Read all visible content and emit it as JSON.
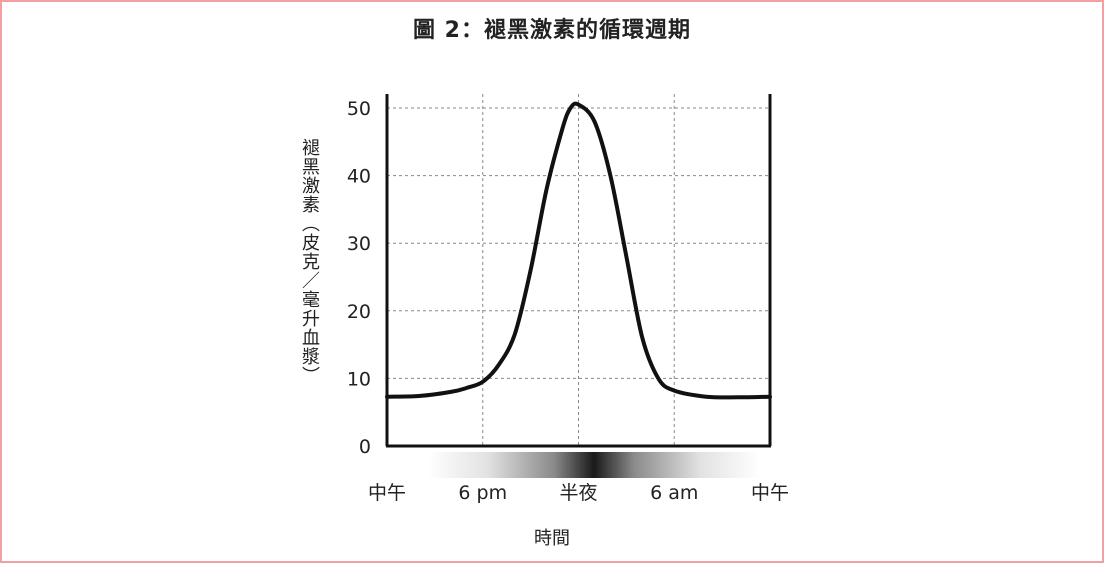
{
  "chart_data": {
    "type": "line",
    "title": "圖 2：褪黑激素的循環週期",
    "ylabel": "褪黑激素（皮克／毫升血漿）",
    "xlabel": "時間",
    "categories": [
      "中午",
      "6 pm",
      "半夜",
      "6 am",
      "中午"
    ],
    "yticks": [
      0,
      10,
      20,
      30,
      40,
      50
    ],
    "ylim": [
      0,
      50
    ],
    "xlim": [
      0,
      24
    ],
    "grid": true,
    "series": [
      {
        "x": [
          0,
          2,
          4,
          5,
          6,
          7,
          8,
          9,
          10,
          11,
          11.5,
          12,
          13,
          14,
          15,
          16,
          17,
          18,
          20,
          22,
          24
        ],
        "values": [
          7.3,
          7.4,
          8.0,
          8.6,
          9.5,
          12,
          16.5,
          26,
          38,
          47,
          50,
          50.5,
          48,
          40,
          28,
          16,
          10,
          8.2,
          7.3,
          7.2,
          7.3
        ]
      }
    ]
  },
  "colors": {
    "line": "#111111",
    "grid": "#888888",
    "border": "#f2a0a4",
    "text": "#222222"
  }
}
